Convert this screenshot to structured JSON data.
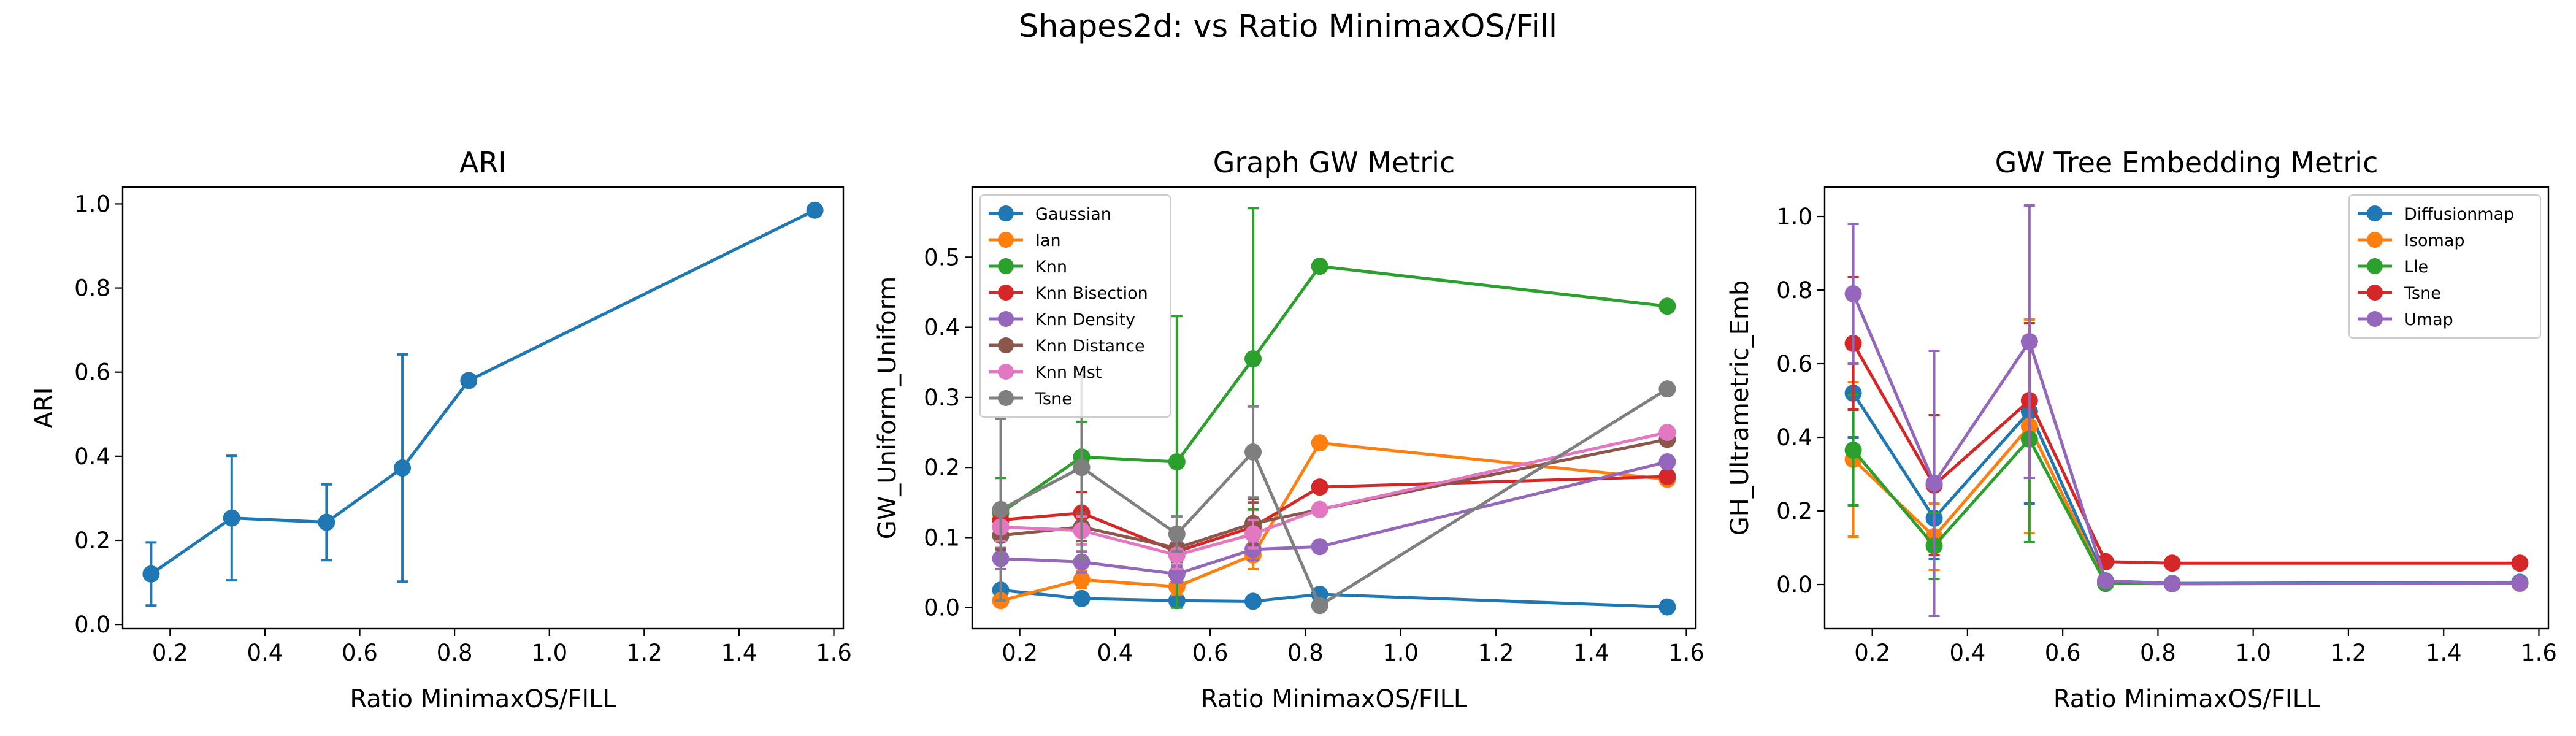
{
  "figure": {
    "suptitle": "Shapes2d: vs Ratio MinimaxOS/Fill"
  },
  "chart_data": [
    {
      "type": "line",
      "title": "ARI",
      "xlabel": "Ratio MinimaxOS/FILL",
      "ylabel": "ARI",
      "xlim": [
        0.1,
        1.62
      ],
      "ylim": [
        -0.01,
        1.04
      ],
      "xticks": [
        0.2,
        0.4,
        0.6,
        0.8,
        1.0,
        1.2,
        1.4,
        1.6
      ],
      "yticks": [
        0.0,
        0.2,
        0.4,
        0.6,
        0.8,
        1.0
      ],
      "xtick_labels": [
        "0.2",
        "0.4",
        "0.6",
        "0.8",
        "1.0",
        "1.2",
        "1.4",
        "1.6"
      ],
      "ytick_labels": [
        "0.0",
        "0.2",
        "0.4",
        "0.6",
        "0.8",
        "1.0"
      ],
      "grid": false,
      "legend": "none",
      "x": [
        0.16,
        0.33,
        0.53,
        0.69,
        0.83,
        1.56
      ],
      "series": [
        {
          "color": "#1f77b4",
          "values": [
            0.12,
            0.253,
            0.243,
            0.372,
            0.58,
            0.985
          ],
          "errors": [
            0.075,
            0.148,
            0.09,
            0.27,
            0.0,
            0.0
          ]
        }
      ]
    },
    {
      "type": "line",
      "title": "Graph GW Metric",
      "xlabel": "Ratio MinimaxOS/FILL",
      "ylabel": "GW_Uniform_Uniform",
      "xlim": [
        0.1,
        1.62
      ],
      "ylim": [
        -0.03,
        0.6
      ],
      "xticks": [
        0.2,
        0.4,
        0.6,
        0.8,
        1.0,
        1.2,
        1.4,
        1.6
      ],
      "yticks": [
        0.0,
        0.1,
        0.2,
        0.3,
        0.4,
        0.5
      ],
      "xtick_labels": [
        "0.2",
        "0.4",
        "0.6",
        "0.8",
        "1.0",
        "1.2",
        "1.4",
        "1.6"
      ],
      "ytick_labels": [
        "0.0",
        "0.1",
        "0.2",
        "0.3",
        "0.4",
        "0.5"
      ],
      "grid": false,
      "legend": "upper-left",
      "x": [
        0.16,
        0.33,
        0.53,
        0.69,
        0.83,
        1.56
      ],
      "series": [
        {
          "name": "Gaussian",
          "color": "#1f77b4",
          "values": [
            0.025,
            0.013,
            0.01,
            0.009,
            0.019,
            0.001
          ],
          "errors": [
            0.008,
            0.005,
            0.005,
            0.004,
            0.005,
            0.0
          ]
        },
        {
          "name": "Ian",
          "color": "#ff7f0e",
          "values": [
            0.01,
            0.04,
            0.03,
            0.075,
            0.235,
            0.183
          ],
          "errors": [
            0.008,
            0.012,
            0.012,
            0.02,
            0.0,
            0.0
          ]
        },
        {
          "name": "Knn",
          "color": "#2ca02c",
          "values": [
            0.135,
            0.215,
            0.208,
            0.355,
            0.487,
            0.43
          ],
          "errors": [
            0.05,
            0.05,
            0.208,
            0.215,
            0.0,
            0.0
          ]
        },
        {
          "name": "Knn Bisection",
          "color": "#d62728",
          "values": [
            0.125,
            0.135,
            0.08,
            0.115,
            0.172,
            0.187
          ],
          "errors": [
            0.02,
            0.03,
            0.015,
            0.04,
            0.0,
            0.0
          ]
        },
        {
          "name": "Knn Density",
          "color": "#9467bd",
          "values": [
            0.07,
            0.065,
            0.048,
            0.083,
            0.087,
            0.208
          ],
          "errors": [
            0.015,
            0.015,
            0.012,
            0.015,
            0.0,
            0.0
          ]
        },
        {
          "name": "Knn Distance",
          "color": "#8c564b",
          "values": [
            0.103,
            0.115,
            0.085,
            0.12,
            0.14,
            0.24
          ],
          "errors": [
            0.02,
            0.02,
            0.02,
            0.03,
            0.0,
            0.0
          ]
        },
        {
          "name": "Knn Mst",
          "color": "#e377c2",
          "values": [
            0.115,
            0.11,
            0.075,
            0.105,
            0.14,
            0.25
          ],
          "errors": [
            0.02,
            0.02,
            0.02,
            0.02,
            0.0,
            0.0
          ]
        },
        {
          "name": "Tsne",
          "color": "#7f7f7f",
          "values": [
            0.14,
            0.2,
            0.105,
            0.222,
            0.003,
            0.312
          ],
          "errors": [
            0.13,
            0.13,
            0.025,
            0.065,
            0.0,
            0.0
          ]
        }
      ]
    },
    {
      "type": "line",
      "title": "GW Tree Embedding Metric",
      "xlabel": "Ratio MinimaxOS/FILL",
      "ylabel": "GH_Ultrametric_Emb",
      "xlim": [
        0.1,
        1.62
      ],
      "ylim": [
        -0.12,
        1.08
      ],
      "xticks": [
        0.2,
        0.4,
        0.6,
        0.8,
        1.0,
        1.2,
        1.4,
        1.6
      ],
      "yticks": [
        0.0,
        0.2,
        0.4,
        0.6,
        0.8,
        1.0
      ],
      "xtick_labels": [
        "0.2",
        "0.4",
        "0.6",
        "0.8",
        "1.0",
        "1.2",
        "1.4",
        "1.6"
      ],
      "ytick_labels": [
        "0.0",
        "0.2",
        "0.4",
        "0.6",
        "0.8",
        "1.0"
      ],
      "grid": false,
      "legend": "upper-right",
      "x": [
        0.16,
        0.33,
        0.53,
        0.69,
        0.83,
        1.56
      ],
      "series": [
        {
          "name": "Diffusionmap",
          "color": "#1f77b4",
          "values": [
            0.52,
            0.18,
            0.47,
            0.01,
            0.003,
            0.006
          ],
          "errors": [
            0.12,
            0.11,
            0.25,
            0.005,
            0.0,
            0.0
          ]
        },
        {
          "name": "Isomap",
          "color": "#ff7f0e",
          "values": [
            0.34,
            0.13,
            0.43,
            0.003,
            0.002,
            0.003
          ],
          "errors": [
            0.21,
            0.09,
            0.29,
            0.003,
            0.0,
            0.0
          ]
        },
        {
          "name": "Lle",
          "color": "#2ca02c",
          "values": [
            0.365,
            0.105,
            0.395,
            0.003,
            0.002,
            0.004
          ],
          "errors": [
            0.15,
            0.09,
            0.28,
            0.003,
            0.0,
            0.0
          ]
        },
        {
          "name": "Tsne",
          "color": "#d62728",
          "values": [
            0.655,
            0.27,
            0.5,
            0.062,
            0.058,
            0.058
          ],
          "errors": [
            0.18,
            0.19,
            0.21,
            0.005,
            0.0,
            0.0
          ]
        },
        {
          "name": "Umap",
          "color": "#9467bd",
          "values": [
            0.79,
            0.275,
            0.66,
            0.01,
            0.002,
            0.004
          ],
          "errors": [
            0.19,
            0.36,
            0.37,
            0.005,
            0.0,
            0.0
          ]
        }
      ]
    }
  ]
}
